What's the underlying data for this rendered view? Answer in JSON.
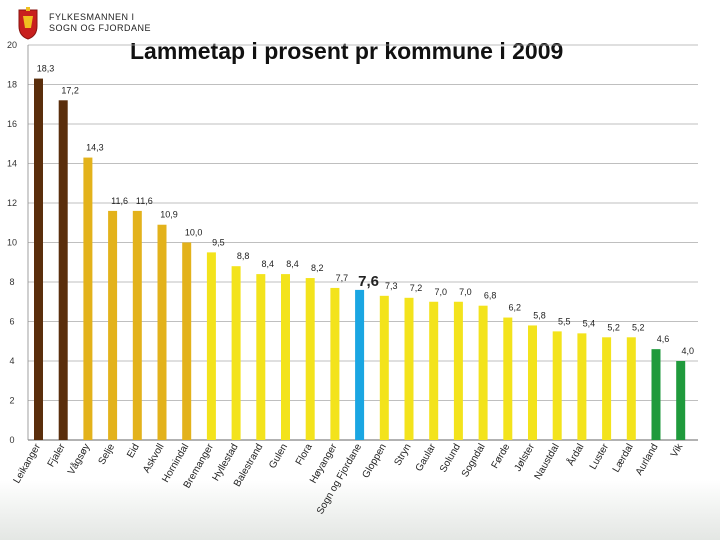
{
  "header": {
    "org_line1": "FYLKESMANNEN I",
    "org_line2": "SOGN OG FJORDANE",
    "logo_icon": "coat-of-arms-icon"
  },
  "chart_data": {
    "type": "bar",
    "title": "Lammetap i prosent pr kommune i 2009",
    "xlabel": "",
    "ylabel": "",
    "ylim": [
      0,
      20
    ],
    "yticks": [
      0,
      2,
      4,
      6,
      8,
      10,
      12,
      14,
      16,
      18,
      20
    ],
    "grid": true,
    "categories": [
      "Leikanger",
      "Fjaler",
      "Vågsøy",
      "Selje",
      "Eid",
      "Askvoll",
      "Hornindal",
      "Bremanger",
      "Hyllestad",
      "Balestrand",
      "Gulen",
      "Flora",
      "Høyanger",
      "Sogn og Fjordane",
      "Gloppen",
      "Stryn",
      "Gaular",
      "Solund",
      "Sogndal",
      "Førde",
      "Jølster",
      "Naustdal",
      "Årdal",
      "Luster",
      "Lærdal",
      "Aurland",
      "Vik"
    ],
    "values": [
      18.3,
      17.2,
      14.3,
      11.6,
      11.6,
      10.9,
      10.0,
      9.5,
      8.8,
      8.4,
      8.4,
      8.2,
      7.7,
      7.6,
      7.3,
      7.2,
      7.0,
      7.0,
      6.8,
      6.2,
      5.8,
      5.5,
      5.4,
      5.2,
      5.2,
      4.6,
      4.0
    ],
    "labels": [
      "18,3",
      "17,2",
      "14,3",
      "11,6",
      "11,6",
      "10,9",
      "10,0",
      "9,5",
      "8,8",
      "8,4",
      "8,4",
      "8,2",
      "7,7",
      "7,6",
      "7,3",
      "7,2",
      "7,0",
      "7,0",
      "6,8",
      "6,2",
      "5,8",
      "5,5",
      "5,4",
      "5,2",
      "5,2",
      "4,6",
      "4,0"
    ],
    "colors": [
      "#5a2e0c",
      "#5a2e0c",
      "#e3b21b",
      "#e3b21b",
      "#e3b21b",
      "#e3b21b",
      "#e3b21b",
      "#f3e31c",
      "#f3e31c",
      "#f3e31c",
      "#f3e31c",
      "#f3e31c",
      "#f3e31c",
      "#1aa6e2",
      "#f3e31c",
      "#f3e31c",
      "#f3e31c",
      "#f3e31c",
      "#f3e31c",
      "#f3e31c",
      "#f3e31c",
      "#f3e31c",
      "#f3e31c",
      "#f3e31c",
      "#f3e31c",
      "#1f9a3c",
      "#1f9a3c"
    ],
    "highlight_index": 13
  }
}
